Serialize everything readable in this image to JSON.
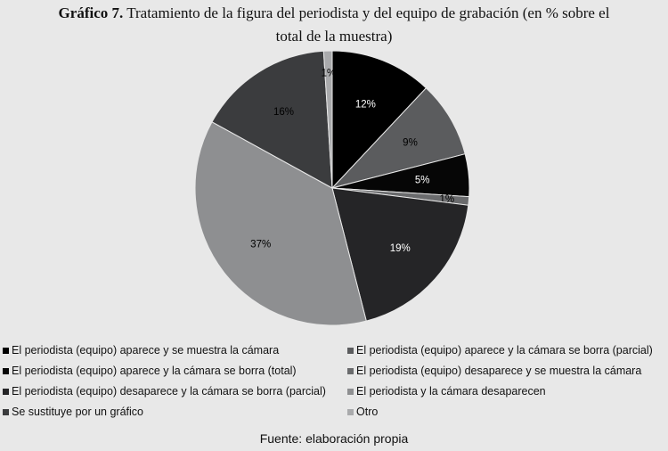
{
  "title": {
    "lead": "Gráfico 7.",
    "line1": "Tratamiento de la figura del periodista y del equipo de grabación (en % sobre el",
    "line2": "total de la muestra)"
  },
  "chart_data": {
    "type": "pie",
    "title": "Gráfico 7. Tratamiento de la figura del periodista y del equipo de grabación (en % sobre el total de la muestra)",
    "unit": "%",
    "slices": [
      {
        "name": "El periodista (equipo) aparece y se muestra la cámara",
        "value": 12,
        "label": "12%",
        "color": "#000000",
        "label_color": "#ffffff"
      },
      {
        "name": "El periodista (equipo) aparece y la cámara se borra (parcial)",
        "value": 9,
        "label": "9%",
        "color": "#5b5c5e",
        "label_color": "#000000"
      },
      {
        "name": "El periodista (equipo) aparece y la cámara se borra (total)",
        "value": 5,
        "label": "5%",
        "color": "#060606",
        "label_color": "#ffffff"
      },
      {
        "name": "El periodista (equipo) desaparece y se muestra la cámara",
        "value": 1,
        "label": "1%",
        "color": "#6a6b6d",
        "label_color": "#000000"
      },
      {
        "name": "El periodista (equipo) desaparece y la cámara se borra (parcial)",
        "value": 19,
        "label": "19%",
        "color": "#252527",
        "label_color": "#ffffff"
      },
      {
        "name": "El periodista y la cámara desaparecen",
        "value": 37,
        "label": "37%",
        "color": "#8e8f91",
        "label_color": "#000000"
      },
      {
        "name": "Se sustituye por un gráfico",
        "value": 16,
        "label": "16%",
        "color": "#3b3c3e",
        "label_color": "#000000"
      },
      {
        "name": "Otro",
        "value": 1,
        "label": "1%",
        "color": "#a9aaac",
        "label_color": "#000000"
      }
    ]
  },
  "legend": [
    {
      "label": "El periodista (equipo) aparece y se muestra la cámara",
      "color": "#000000"
    },
    {
      "label": "El periodista (equipo) aparece y la cámara se borra (parcial)",
      "color": "#5b5c5e"
    },
    {
      "label": "El periodista (equipo) aparece y la cámara se borra (total)",
      "color": "#060606"
    },
    {
      "label": "El periodista (equipo) desaparece y se muestra la cámara",
      "color": "#6a6b6d"
    },
    {
      "label": "El periodista (equipo) desaparece y la cámara se borra (parcial)",
      "color": "#252527"
    },
    {
      "label": "El periodista y la cámara desaparecen",
      "color": "#8e8f91"
    },
    {
      "label": "Se sustituye por un gráfico",
      "color": "#3b3c3e"
    },
    {
      "label": "Otro",
      "color": "#a9aaac"
    }
  ],
  "source": "Fuente: elaboración propia"
}
